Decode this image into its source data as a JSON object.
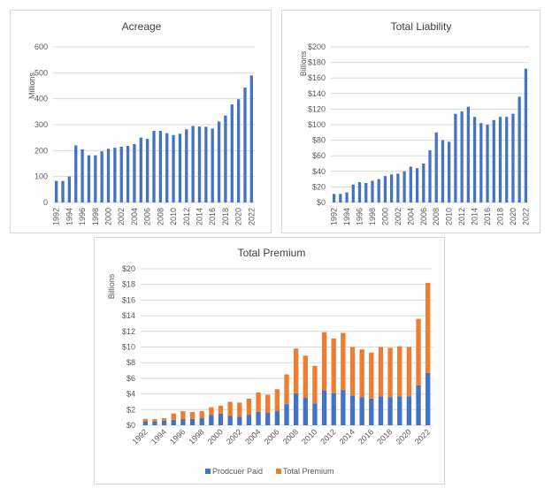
{
  "chart_data": [
    {
      "type": "bar",
      "title": "Acreage",
      "xlabel": "",
      "ylabel": "Millions",
      "ylim": [
        0,
        600
      ],
      "yticks": [
        "0",
        "100",
        "200",
        "300",
        "400",
        "500",
        "600"
      ],
      "grid": true,
      "color": "#4472C4",
      "categories": [
        "1992",
        "1993",
        "1994",
        "1995",
        "1996",
        "1997",
        "1998",
        "1999",
        "2000",
        "2001",
        "2002",
        "2003",
        "2004",
        "2005",
        "2006",
        "2007",
        "2008",
        "2009",
        "2010",
        "2011",
        "2012",
        "2013",
        "2014",
        "2015",
        "2016",
        "2017",
        "2018",
        "2019",
        "2020",
        "2021",
        "2022"
      ],
      "xtick_labels": [
        "1992",
        "1994",
        "1996",
        "1998",
        "2000",
        "2002",
        "2004",
        "2006",
        "2008",
        "2010",
        "2012",
        "2014",
        "2016",
        "2018",
        "2020",
        "2022"
      ],
      "values": [
        83,
        83,
        100,
        220,
        205,
        182,
        182,
        197,
        207,
        211,
        215,
        218,
        225,
        250,
        245,
        276,
        276,
        267,
        260,
        265,
        282,
        295,
        293,
        292,
        285,
        312,
        335,
        378,
        398,
        443,
        490
      ]
    },
    {
      "type": "bar",
      "title": "Total Liability",
      "xlabel": "",
      "ylabel": "Billions",
      "ylim": [
        0,
        200
      ],
      "yticks": [
        "$0",
        "$20",
        "$40",
        "$60",
        "$80",
        "$100",
        "$120",
        "$140",
        "$160",
        "$180",
        "$200"
      ],
      "grid": true,
      "color": "#4472C4",
      "categories": [
        "1992",
        "1993",
        "1994",
        "1995",
        "1996",
        "1997",
        "1998",
        "1999",
        "2000",
        "2001",
        "2002",
        "2003",
        "2004",
        "2005",
        "2006",
        "2007",
        "2008",
        "2009",
        "2010",
        "2011",
        "2012",
        "2013",
        "2014",
        "2015",
        "2016",
        "2017",
        "2018",
        "2019",
        "2020",
        "2021",
        "2022"
      ],
      "xtick_labels": [
        "1992",
        "1994",
        "1996",
        "1998",
        "2000",
        "2002",
        "2004",
        "2006",
        "2008",
        "2010",
        "2012",
        "2014",
        "2016",
        "2018",
        "2020",
        "2022"
      ],
      "values": [
        11,
        11,
        13,
        23,
        26,
        25,
        28,
        30,
        34,
        36,
        37,
        40,
        46,
        44,
        50,
        67,
        90,
        80,
        78,
        114,
        117,
        123,
        110,
        102,
        100,
        106,
        110,
        110,
        114,
        136,
        172
      ]
    },
    {
      "type": "bar",
      "stacked": true,
      "title": "Total Premium",
      "xlabel": "",
      "ylabel": "Billions",
      "ylim": [
        0,
        20
      ],
      "yticks": [
        "$0",
        "$2",
        "$4",
        "$6",
        "$8",
        "$10",
        "$12",
        "$14",
        "$16",
        "$18",
        "$20"
      ],
      "grid": true,
      "legend": "bottom",
      "categories": [
        "1992",
        "1993",
        "1994",
        "1995",
        "1996",
        "1997",
        "1998",
        "1999",
        "2000",
        "2001",
        "2002",
        "2003",
        "2004",
        "2005",
        "2006",
        "2007",
        "2008",
        "2009",
        "2010",
        "2011",
        "2012",
        "2013",
        "2014",
        "2015",
        "2016",
        "2017",
        "2018",
        "2019",
        "2020",
        "2021",
        "2022"
      ],
      "xtick_labels": [
        "1992",
        "1994",
        "1996",
        "1998",
        "2000",
        "2002",
        "2004",
        "2006",
        "2008",
        "2010",
        "2012",
        "2014",
        "2016",
        "2018",
        "2020",
        "2022"
      ],
      "series": [
        {
          "name": "Prodcuer Paid",
          "color": "#4472C4",
          "values": [
            0.5,
            0.5,
            0.6,
            0.7,
            0.8,
            0.8,
            0.9,
            1.3,
            1.5,
            1.2,
            1.1,
            1.3,
            1.7,
            1.6,
            1.8,
            2.7,
            4.1,
            3.5,
            2.8,
            4.5,
            4.1,
            4.5,
            3.8,
            3.6,
            3.4,
            3.7,
            3.6,
            3.7,
            3.7,
            5.1,
            6.7
          ]
        },
        {
          "name": "Total Premium",
          "color": "#ED7D31",
          "values": [
            0.3,
            0.3,
            0.3,
            0.8,
            1.0,
            0.9,
            0.9,
            1.0,
            1.0,
            1.8,
            1.8,
            2.1,
            2.5,
            2.3,
            2.8,
            3.8,
            5.7,
            5.4,
            4.8,
            7.4,
            7.0,
            7.3,
            6.2,
            6.1,
            5.9,
            6.3,
            6.3,
            6.4,
            6.3,
            8.5,
            11.5
          ]
        }
      ]
    }
  ]
}
